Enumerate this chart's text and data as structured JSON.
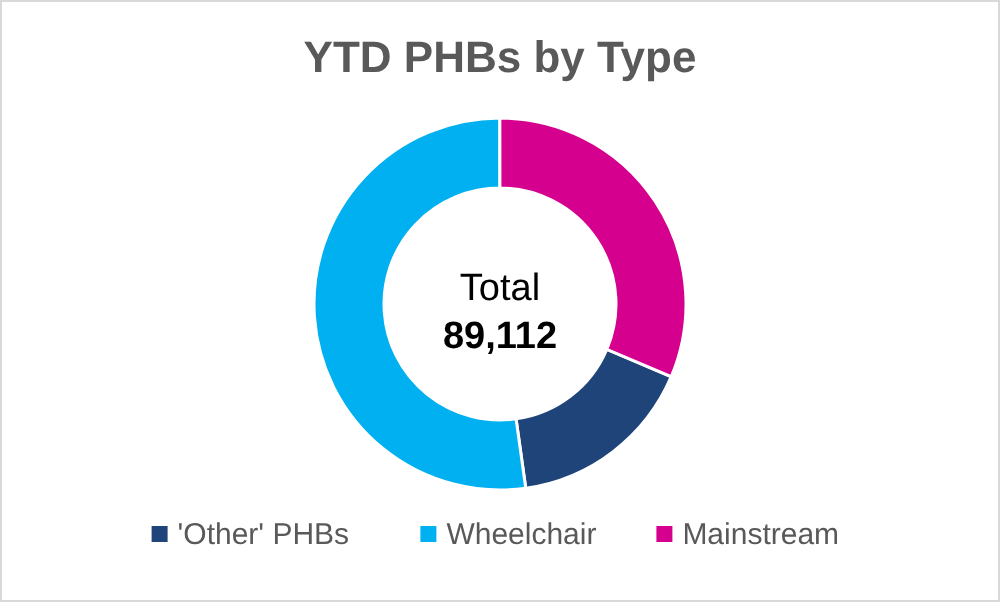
{
  "chart_data": {
    "type": "donut",
    "title": "YTD PHBs by Type",
    "categories": [
      "'Other' PHBs",
      "Wheelchair",
      "Mainstream"
    ],
    "values": [
      16.4,
      52.2,
      31.4
    ],
    "colors": [
      "#1f4479",
      "#00b0f0",
      "#d6008f"
    ],
    "annotations": [
      "Total",
      "89,112"
    ],
    "legend": "bottom"
  }
}
